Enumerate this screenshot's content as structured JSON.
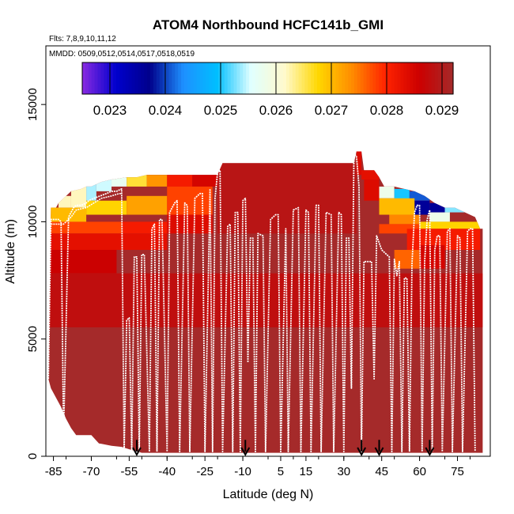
{
  "chart_data": {
    "type": "heatmap",
    "title": "ATOM4 Northbound HCFC141b_GMI",
    "flights_note": "Flts: 7,8,9,10,11,12",
    "dates_note": "MMDD: 0509,0512,0514,0517,0518,0519",
    "xlabel": "Latitude (deg N)",
    "ylabel": "Altitude (m)",
    "xlim": [
      -88,
      88
    ],
    "ylim": [
      0,
      17500
    ],
    "x_ticks": [
      -85,
      -70,
      -55,
      -40,
      -25,
      -10,
      5,
      15,
      30,
      45,
      60,
      75
    ],
    "x_tick_labels": [
      "-85",
      "-70",
      "-55",
      "-40",
      "-25",
      "-10",
      "5",
      "15",
      "30",
      "45",
      "60",
      "75"
    ],
    "y_ticks": [
      0,
      5000,
      10000,
      15000
    ],
    "y_tick_labels": [
      "0",
      "5000",
      "10000",
      "15000"
    ],
    "colorbar": {
      "min": 0.0225,
      "max": 0.0292,
      "tick_values": [
        0.023,
        0.024,
        0.025,
        0.026,
        0.027,
        0.028,
        0.029
      ],
      "tick_labels": [
        "0.023",
        "0.024",
        "0.025",
        "0.026",
        "0.027",
        "0.028",
        "0.029"
      ],
      "colors": [
        "#8a2be2",
        "#0000cd",
        "#00008b",
        "#1e90ff",
        "#00bfff",
        "#e0ffff",
        "#fffacd",
        "#ffd700",
        "#ff8c00",
        "#ff2200",
        "#cc0000",
        "#a52a2a"
      ]
    },
    "background_value": 0.0292,
    "profile_top": [
      [
        -87,
        3300
      ],
      [
        -86,
        10600
      ],
      [
        -84,
        10600
      ],
      [
        -83,
        10800
      ],
      [
        -81,
        11000
      ],
      [
        -78,
        11300
      ],
      [
        -74,
        11400
      ],
      [
        -72,
        11500
      ],
      [
        -70,
        11500
      ],
      [
        -66,
        11700
      ],
      [
        -62,
        11800
      ],
      [
        -56,
        11900
      ],
      [
        -52,
        11900
      ],
      [
        -48,
        12000
      ],
      [
        -44,
        12000
      ],
      [
        -40,
        12000
      ],
      [
        -36,
        12000
      ],
      [
        -32,
        12000
      ],
      [
        -28,
        12000
      ],
      [
        -24,
        12000
      ],
      [
        -20,
        12000
      ],
      [
        -18,
        12500
      ],
      [
        -10,
        12500
      ],
      [
        0,
        12500
      ],
      [
        10,
        12500
      ],
      [
        20,
        12500
      ],
      [
        30,
        12500
      ],
      [
        34,
        12500
      ],
      [
        35,
        13000
      ],
      [
        37,
        13000
      ],
      [
        38,
        12200
      ],
      [
        42,
        12200
      ],
      [
        44,
        11900
      ],
      [
        46,
        11500
      ],
      [
        50,
        11500
      ],
      [
        54,
        11400
      ],
      [
        58,
        11300
      ],
      [
        62,
        11100
      ],
      [
        66,
        10800
      ],
      [
        70,
        10600
      ],
      [
        74,
        10600
      ],
      [
        78,
        10400
      ],
      [
        82,
        10200
      ],
      [
        84,
        9700
      ],
      [
        85,
        9700
      ]
    ],
    "profile_bottom": [
      [
        -87,
        3300
      ],
      [
        -86,
        2900
      ],
      [
        -84,
        2500
      ],
      [
        -82,
        2100
      ],
      [
        -80,
        1600
      ],
      [
        -78,
        1200
      ],
      [
        -76,
        900
      ],
      [
        -72,
        900
      ],
      [
        -70,
        900
      ],
      [
        -67,
        550
      ],
      [
        -62,
        450
      ],
      [
        -58,
        400
      ],
      [
        -55,
        300
      ],
      [
        -50,
        150
      ],
      [
        85,
        150
      ]
    ],
    "cells": [
      {
        "lat": [
          -87,
          -83
        ],
        "alt": [
          10000,
          10600
        ],
        "v": 0.0272
      },
      {
        "lat": [
          -83,
          -78
        ],
        "alt": [
          10600,
          11100
        ],
        "v": 0.0262
      },
      {
        "lat": [
          -78,
          -72
        ],
        "alt": [
          10600,
          11500
        ],
        "v": 0.0262
      },
      {
        "lat": [
          -72,
          -68
        ],
        "alt": [
          10900,
          11600
        ],
        "v": 0.0254
      },
      {
        "lat": [
          -68,
          -62
        ],
        "alt": [
          11300,
          11800
        ],
        "v": 0.0255
      },
      {
        "lat": [
          -62,
          -56
        ],
        "alt": [
          11500,
          11900
        ],
        "v": 0.0257
      },
      {
        "lat": [
          -56,
          -48
        ],
        "alt": [
          11500,
          12000
        ],
        "v": 0.0266
      },
      {
        "lat": [
          -48,
          -40
        ],
        "alt": [
          11500,
          12000
        ],
        "v": 0.0273
      },
      {
        "lat": [
          -40,
          -30
        ],
        "alt": [
          11500,
          12000
        ],
        "v": 0.0281
      },
      {
        "lat": [
          -30,
          -20
        ],
        "alt": [
          11500,
          12000
        ],
        "v": 0.0285
      },
      {
        "lat": [
          -88,
          -58
        ],
        "alt": [
          9500,
          10000
        ],
        "v": 0.0278
      },
      {
        "lat": [
          -58,
          -40
        ],
        "alt": [
          9500,
          10000
        ],
        "v": 0.0281
      },
      {
        "lat": [
          -40,
          -22
        ],
        "alt": [
          9500,
          10300
        ],
        "v": 0.0284
      },
      {
        "lat": [
          -86,
          -72
        ],
        "alt": [
          10000,
          10600
        ],
        "v": 0.027
      },
      {
        "lat": [
          -72,
          -56
        ],
        "alt": [
          10300,
          10900
        ],
        "v": 0.0268
      },
      {
        "lat": [
          -56,
          -40
        ],
        "alt": [
          10300,
          11100
        ],
        "v": 0.0272
      },
      {
        "lat": [
          -40,
          -22
        ],
        "alt": [
          10300,
          11500
        ],
        "v": 0.0278
      },
      {
        "lat": [
          -88,
          -40
        ],
        "alt": [
          8800,
          9500
        ],
        "v": 0.0283
      },
      {
        "lat": [
          -88,
          -60
        ],
        "alt": [
          7800,
          8800
        ],
        "v": 0.0286
      },
      {
        "lat": [
          -88,
          85
        ],
        "alt": [
          5500,
          7800
        ],
        "v": 0.0288
      },
      {
        "lat": [
          -20,
          35
        ],
        "alt": [
          9500,
          12500
        ],
        "v": 0.0289
      },
      {
        "lat": [
          35,
          37
        ],
        "alt": [
          12000,
          13000
        ],
        "v": 0.0284
      },
      {
        "lat": [
          37,
          44
        ],
        "alt": [
          11800,
          12200
        ],
        "v": 0.0283
      },
      {
        "lat": [
          38,
          44
        ],
        "alt": [
          10900,
          11800
        ],
        "v": 0.0284
      },
      {
        "lat": [
          44,
          50
        ],
        "alt": [
          11000,
          11500
        ],
        "v": 0.0258
      },
      {
        "lat": [
          50,
          56
        ],
        "alt": [
          10900,
          11400
        ],
        "v": 0.025
      },
      {
        "lat": [
          56,
          64
        ],
        "alt": [
          10900,
          11300
        ],
        "v": 0.0241
      },
      {
        "lat": [
          64,
          70
        ],
        "alt": [
          10400,
          10800
        ],
        "v": 0.0236
      },
      {
        "lat": [
          70,
          78
        ],
        "alt": [
          10400,
          11100
        ],
        "v": 0.0253
      },
      {
        "lat": [
          58,
          64
        ],
        "alt": [
          10300,
          10900
        ],
        "v": 0.0236
      },
      {
        "lat": [
          64,
          72
        ],
        "alt": [
          10000,
          10400
        ],
        "v": 0.0258
      },
      {
        "lat": [
          44,
          58
        ],
        "alt": [
          10300,
          11000
        ],
        "v": 0.027
      },
      {
        "lat": [
          48,
          60
        ],
        "alt": [
          9900,
          10300
        ],
        "v": 0.0274
      },
      {
        "lat": [
          60,
          84
        ],
        "alt": [
          9700,
          10000
        ],
        "v": 0.0268
      },
      {
        "lat": [
          44,
          60
        ],
        "alt": [
          9500,
          9900
        ],
        "v": 0.0278
      },
      {
        "lat": [
          55,
          84
        ],
        "alt": [
          8800,
          9700
        ],
        "v": 0.0281
      },
      {
        "lat": [
          50,
          60
        ],
        "alt": [
          8000,
          8800
        ],
        "v": 0.0276
      },
      {
        "lat": [
          60,
          70
        ],
        "alt": [
          8000,
          9000
        ],
        "v": 0.0285
      }
    ],
    "track": [
      [
        -87,
        3300
      ],
      [
        -86,
        10100
      ],
      [
        -83,
        10100
      ],
      [
        -82,
        10000
      ],
      [
        -81,
        1000
      ],
      [
        -79,
        10200
      ],
      [
        -77,
        10600
      ],
      [
        -76,
        10700
      ],
      [
        -74,
        10700
      ],
      [
        -72,
        10800
      ],
      [
        -71,
        10900
      ],
      [
        -69,
        11000
      ],
      [
        -64,
        11200
      ],
      [
        -62,
        11300
      ],
      [
        -60,
        11300
      ],
      [
        -58,
        11400
      ],
      [
        -57,
        200
      ],
      [
        -56,
        5800
      ],
      [
        -55,
        5900
      ],
      [
        -54,
        200
      ],
      [
        -53,
        8500
      ],
      [
        -52,
        8500
      ],
      [
        -51,
        200
      ],
      [
        -50,
        8600
      ],
      [
        -49,
        8600
      ],
      [
        -47,
        200
      ],
      [
        -46,
        9700
      ],
      [
        -45,
        9900
      ],
      [
        -44,
        200
      ],
      [
        -43,
        10100
      ],
      [
        -42,
        10100
      ],
      [
        -40,
        200
      ],
      [
        -39,
        10400
      ],
      [
        -37,
        10800
      ],
      [
        -36,
        10900
      ],
      [
        -35,
        200
      ],
      [
        -33,
        10800
      ],
      [
        -32,
        10700
      ],
      [
        -31,
        200
      ],
      [
        -29,
        11000
      ],
      [
        -27,
        11200
      ],
      [
        -26,
        11200
      ],
      [
        -25,
        200
      ],
      [
        -23,
        11400
      ],
      [
        -22,
        200
      ],
      [
        -21,
        11000
      ],
      [
        -20,
        12100
      ],
      [
        -19,
        12200
      ],
      [
        -18,
        200
      ],
      [
        -16,
        9800
      ],
      [
        -15,
        9900
      ],
      [
        -14,
        200
      ],
      [
        -13,
        10400
      ],
      [
        -12,
        10400
      ],
      [
        -11,
        200
      ],
      [
        -10,
        10900
      ],
      [
        -9,
        11000
      ],
      [
        -8,
        4000
      ],
      [
        -7,
        9300
      ],
      [
        -6,
        9300
      ],
      [
        -5,
        200
      ],
      [
        -4,
        9500
      ],
      [
        -2,
        9400
      ],
      [
        -1,
        200
      ],
      [
        1,
        10100
      ],
      [
        3,
        10300
      ],
      [
        4,
        10300
      ],
      [
        5,
        200
      ],
      [
        7,
        9700
      ],
      [
        8,
        200
      ],
      [
        10,
        10500
      ],
      [
        12,
        10600
      ],
      [
        13,
        200
      ],
      [
        15,
        10500
      ],
      [
        16,
        10400
      ],
      [
        17,
        200
      ],
      [
        19,
        10700
      ],
      [
        20,
        10700
      ],
      [
        21,
        200
      ],
      [
        23,
        10400
      ],
      [
        25,
        10300
      ],
      [
        26,
        200
      ],
      [
        28,
        10400
      ],
      [
        29,
        10300
      ],
      [
        30,
        200
      ],
      [
        31,
        9300
      ],
      [
        32,
        9300
      ],
      [
        33,
        2900
      ],
      [
        34,
        12900
      ],
      [
        35,
        12800
      ],
      [
        36,
        11500
      ],
      [
        37,
        200
      ],
      [
        38,
        8300
      ],
      [
        41,
        8300
      ],
      [
        42,
        3300
      ],
      [
        43,
        9400
      ],
      [
        44,
        9100
      ],
      [
        45,
        8800
      ],
      [
        46,
        8700
      ],
      [
        48,
        8500
      ],
      [
        49,
        200
      ],
      [
        50,
        8400
      ],
      [
        51,
        7700
      ],
      [
        52,
        8300
      ],
      [
        53,
        200
      ],
      [
        54,
        7600
      ],
      [
        55,
        7600
      ],
      [
        56,
        200
      ],
      [
        57,
        8200
      ],
      [
        58,
        10400
      ],
      [
        59,
        10700
      ],
      [
        60,
        10700
      ],
      [
        61,
        200
      ],
      [
        62,
        8300
      ],
      [
        63,
        10100
      ],
      [
        64,
        10500
      ],
      [
        65,
        200
      ],
      [
        66,
        8800
      ],
      [
        67,
        9400
      ],
      [
        68,
        9400
      ],
      [
        69,
        200
      ],
      [
        71,
        9600
      ],
      [
        72,
        9700
      ],
      [
        73,
        200
      ],
      [
        75,
        9400
      ],
      [
        76,
        9300
      ],
      [
        77,
        200
      ],
      [
        79,
        9600
      ],
      [
        80,
        9700
      ],
      [
        81,
        9700
      ],
      [
        82,
        200
      ]
    ],
    "track_secondary": [
      [
        -86,
        9900
      ],
      [
        -84,
        9900
      ],
      [
        -82,
        9900
      ],
      [
        -81,
        9900
      ],
      [
        -78,
        10200
      ],
      [
        -76,
        10500
      ],
      [
        -72,
        10600
      ],
      [
        -69,
        10800
      ],
      [
        -66,
        11000
      ],
      [
        -62,
        11100
      ],
      [
        -59,
        11200
      ],
      [
        -58,
        11200
      ]
    ],
    "arrows_lat": [
      -52,
      -9,
      37,
      44,
      64
    ],
    "grid": false,
    "legend": "none"
  }
}
